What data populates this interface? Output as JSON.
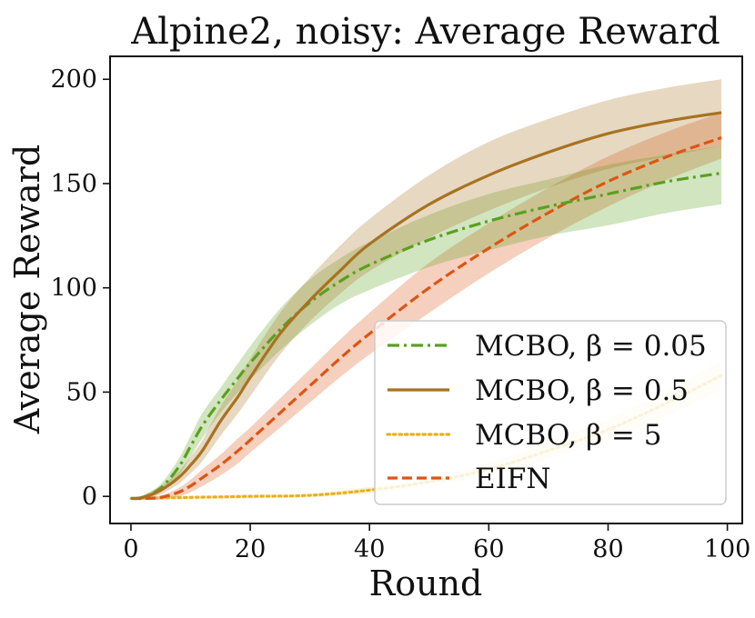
{
  "chart_data": {
    "type": "line",
    "title": "Alpine2, noisy: Average Reward",
    "xlabel": "Round",
    "ylabel": "Average Reward",
    "xlim": [
      -3.5,
      102.5
    ],
    "ylim": [
      -13,
      211
    ],
    "xticks": [
      0,
      20,
      40,
      60,
      80,
      100
    ],
    "yticks": [
      0,
      50,
      100,
      150,
      200
    ],
    "x_tick_labels": [
      "0",
      "20",
      "40",
      "60",
      "80",
      "100"
    ],
    "y_tick_labels": [
      "0",
      "50",
      "100",
      "150",
      "200"
    ],
    "grid": false,
    "legend_position": "lower-right",
    "series": [
      {
        "name": "MCBO, β = 0.05",
        "legend_text": "MCBO, β = 0.05",
        "color": "#5aa01e",
        "style": "dashdot",
        "x": [
          0,
          2,
          5,
          8,
          10,
          12,
          15,
          18,
          20,
          25,
          30,
          35,
          40,
          50,
          60,
          70,
          80,
          90,
          99
        ],
        "y": [
          -1,
          -0.5,
          4,
          14,
          24,
          34,
          46,
          57,
          64,
          80,
          93,
          103,
          111,
          123,
          132,
          139,
          145,
          151,
          155
        ],
        "lower": [
          -1.5,
          -1.5,
          2,
          10,
          19,
          28,
          40,
          50,
          56,
          70,
          82,
          92,
          99,
          110,
          118,
          125,
          130,
          136,
          140
        ],
        "upper": [
          -0.5,
          0.5,
          6,
          18,
          29,
          40,
          52,
          64,
          72,
          90,
          104,
          114,
          122,
          135,
          145,
          152,
          159,
          164,
          168
        ]
      },
      {
        "name": "MCBO, β = 0.5",
        "legend_text": "MCBO, β = 0.5",
        "color": "#a87221",
        "style": "solid",
        "x": [
          0,
          2,
          5,
          8,
          10,
          12,
          15,
          18,
          20,
          25,
          30,
          35,
          40,
          50,
          60,
          70,
          80,
          90,
          99
        ],
        "y": [
          -1,
          -0.5,
          3,
          9,
          15,
          22,
          36,
          48,
          57,
          78,
          94,
          108,
          121,
          140,
          154,
          165,
          174,
          180,
          184
        ],
        "lower": [
          -1.5,
          -1.5,
          1,
          6,
          11,
          17,
          29,
          40,
          48,
          68,
          84,
          97,
          108,
          124,
          137,
          148,
          157,
          163,
          168
        ],
        "upper": [
          -0.5,
          0.5,
          5,
          12,
          19,
          27,
          43,
          56,
          66,
          88,
          105,
          120,
          133,
          154,
          170,
          181,
          190,
          196,
          200
        ]
      },
      {
        "name": "MCBO, β = 5",
        "legend_text": "MCBO, β = 5",
        "color": "#e5b11e",
        "style": "dotted",
        "x": [
          0,
          10,
          20,
          30,
          40,
          50,
          60,
          70,
          80,
          90,
          99
        ],
        "y": [
          -1,
          -0.5,
          0,
          0.5,
          3,
          7,
          13,
          22,
          32,
          45,
          58
        ],
        "lower": [
          -1.5,
          -1.5,
          -1,
          -0.5,
          1.5,
          5,
          10,
          18,
          27,
          39,
          51
        ],
        "upper": [
          -0.5,
          0.5,
          1,
          1.5,
          4.5,
          9,
          16,
          26,
          37,
          51,
          65
        ]
      },
      {
        "name": "EIFN",
        "legend_text": "EIFN",
        "color": "#dd5514",
        "style": "dashed",
        "x": [
          0,
          2,
          5,
          8,
          10,
          12,
          15,
          18,
          20,
          25,
          30,
          35,
          40,
          50,
          60,
          70,
          80,
          90,
          99
        ],
        "y": [
          -1,
          -1,
          -0.5,
          2,
          5,
          9,
          15,
          22,
          27,
          40,
          53,
          66,
          78,
          100,
          119,
          136,
          151,
          163,
          172
        ],
        "lower": [
          -1.5,
          -1.5,
          -1.5,
          0,
          2,
          5,
          10,
          16,
          21,
          33,
          45,
          57,
          68,
          88,
          107,
          124,
          139,
          152,
          162
        ],
        "upper": [
          -0.5,
          -0.5,
          0.5,
          4,
          8,
          13,
          20,
          28,
          33,
          47,
          61,
          75,
          88,
          112,
          131,
          148,
          163,
          175,
          184
        ]
      }
    ]
  }
}
